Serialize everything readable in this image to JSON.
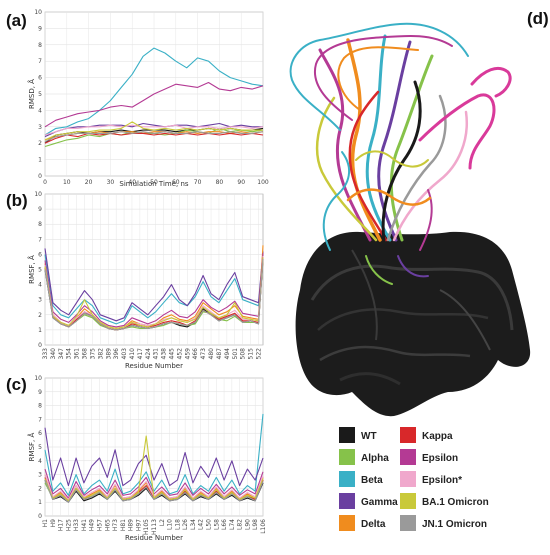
{
  "figure": {
    "panel_labels": [
      "(a)",
      "(b)",
      "(c)",
      "(d)"
    ]
  },
  "colors": {
    "WT": "#1a1a1a",
    "Alpha": "#86c24a",
    "Beta": "#3ab0c6",
    "Gamma": "#6a3fa0",
    "Delta": "#f08c1e",
    "Kappa": "#d8282a",
    "Epsilon": "#b43a94",
    "Epsilon*": "#f0a8cc",
    "BA.1 Omicron": "#c9c93a",
    "JN.1 Omicron": "#9a9a9a"
  },
  "legend": {
    "items": [
      "WT",
      "Alpha",
      "Beta",
      "Gamma",
      "Delta",
      "Kappa",
      "Epsilon",
      "Epsilon*",
      "BA.1 Omicron",
      "JN.1 Omicron"
    ]
  },
  "chart_data": [
    {
      "panel": "(a)",
      "type": "line",
      "xlabel": "Simulation Time, ns",
      "ylabel": "RMSD, Å",
      "xlim": [
        0,
        100
      ],
      "ylim": [
        0,
        10
      ],
      "xticks": [
        "0",
        "10",
        "20",
        "30",
        "40",
        "50",
        "60",
        "70",
        "80",
        "90",
        "100"
      ],
      "yticks": [
        "0",
        "1",
        "2",
        "3",
        "4",
        "5",
        "6",
        "7",
        "8",
        "9",
        "10"
      ],
      "grid": true,
      "x": [
        0,
        5,
        10,
        15,
        20,
        25,
        30,
        35,
        40,
        45,
        50,
        55,
        60,
        65,
        70,
        75,
        80,
        85,
        90,
        95,
        100
      ],
      "series": [
        {
          "name": "WT",
          "values": [
            2.0,
            2.5,
            2.6,
            2.7,
            2.6,
            2.7,
            2.7,
            2.8,
            2.7,
            2.8,
            2.8,
            2.8,
            2.7,
            2.8,
            2.8,
            2.9,
            2.8,
            2.9,
            2.8,
            2.8,
            2.9
          ]
        },
        {
          "name": "Alpha",
          "values": [
            1.8,
            2.0,
            2.2,
            2.3,
            2.5,
            2.4,
            2.6,
            2.5,
            2.7,
            2.6,
            2.6,
            2.5,
            2.6,
            2.8,
            2.7,
            2.6,
            2.9,
            2.7,
            2.8,
            2.7,
            2.8
          ]
        },
        {
          "name": "Beta",
          "values": [
            2.5,
            2.9,
            3.0,
            3.3,
            3.5,
            4.0,
            4.6,
            5.4,
            6.2,
            7.3,
            7.8,
            7.5,
            7.0,
            6.6,
            7.2,
            7.0,
            6.4,
            6.0,
            5.8,
            5.6,
            5.5
          ]
        },
        {
          "name": "Gamma",
          "values": [
            2.4,
            2.7,
            2.9,
            3.0,
            3.0,
            3.1,
            3.1,
            3.1,
            3.0,
            3.2,
            3.1,
            3.0,
            3.1,
            3.1,
            3.0,
            3.1,
            3.2,
            3.0,
            3.1,
            3.0,
            3.0
          ]
        },
        {
          "name": "Delta",
          "values": [
            2.2,
            2.4,
            2.5,
            2.6,
            2.6,
            2.7,
            2.6,
            2.7,
            2.7,
            2.6,
            2.7,
            2.7,
            2.6,
            2.7,
            2.6,
            2.7,
            2.7,
            2.6,
            2.7,
            2.6,
            2.7
          ]
        },
        {
          "name": "Kappa",
          "values": [
            2.0,
            2.3,
            2.5,
            2.4,
            2.6,
            2.5,
            2.6,
            2.5,
            2.6,
            2.6,
            2.5,
            2.6,
            2.5,
            2.6,
            2.5,
            2.6,
            2.5,
            2.6,
            2.5,
            2.6,
            2.5
          ]
        },
        {
          "name": "Epsilon",
          "values": [
            3.0,
            3.4,
            3.6,
            3.8,
            3.9,
            4.0,
            4.2,
            4.3,
            4.2,
            4.6,
            5.0,
            5.3,
            5.6,
            5.5,
            5.4,
            5.7,
            5.3,
            5.2,
            5.4,
            5.3,
            5.5
          ]
        },
        {
          "name": "Epsilon*",
          "values": [
            2.5,
            2.7,
            2.9,
            2.9,
            3.0,
            3.0,
            3.1,
            3.0,
            3.1,
            3.0,
            3.0,
            3.0,
            3.1,
            2.9,
            3.0,
            3.0,
            2.9,
            3.0,
            3.0,
            2.9,
            3.0
          ]
        },
        {
          "name": "BA.1 Omicron",
          "values": [
            2.2,
            2.5,
            2.6,
            2.7,
            2.7,
            2.8,
            2.8,
            2.9,
            3.3,
            2.9,
            2.8,
            2.9,
            2.8,
            2.9,
            2.8,
            2.9,
            2.8,
            2.9,
            2.8,
            2.8,
            2.8
          ]
        },
        {
          "name": "JN.1 Omicron",
          "values": [
            2.1,
            2.4,
            2.5,
            2.6,
            2.6,
            2.6,
            2.6,
            2.7,
            2.6,
            2.7,
            2.6,
            2.7,
            2.6,
            2.6,
            2.7,
            2.6,
            2.6,
            2.7,
            2.6,
            2.6,
            2.7
          ]
        }
      ]
    },
    {
      "panel": "(b)",
      "type": "line",
      "xlabel": "Residue Number",
      "ylabel": "RMSF, Å",
      "ylim": [
        0,
        10
      ],
      "yticks": [
        "0",
        "1",
        "2",
        "3",
        "4",
        "5",
        "6",
        "7",
        "8",
        "9",
        "10"
      ],
      "xticks": [
        "333",
        "340",
        "347",
        "354",
        "361",
        "368",
        "375",
        "382",
        "389",
        "396",
        "403",
        "410",
        "417",
        "424",
        "431",
        "438",
        "445",
        "452",
        "459",
        "466",
        "473",
        "480",
        "487",
        "494",
        "501",
        "508",
        "515",
        "522"
      ],
      "grid": true,
      "x": [
        333,
        340,
        347,
        354,
        361,
        368,
        375,
        382,
        389,
        396,
        403,
        410,
        417,
        424,
        431,
        438,
        445,
        452,
        459,
        466,
        473,
        480,
        487,
        494,
        501,
        508,
        515,
        522,
        526
      ],
      "series": [
        {
          "name": "WT",
          "values": [
            5.0,
            1.8,
            1.4,
            1.2,
            1.6,
            2.2,
            1.9,
            1.4,
            1.1,
            1.0,
            1.1,
            1.3,
            1.2,
            1.1,
            1.2,
            1.4,
            1.5,
            1.3,
            1.2,
            1.5,
            2.4,
            2.0,
            1.6,
            1.8,
            2.0,
            1.5,
            1.6,
            1.4,
            5.8
          ]
        },
        {
          "name": "Alpha",
          "values": [
            5.2,
            1.9,
            1.4,
            1.2,
            1.6,
            2.0,
            1.8,
            1.3,
            1.1,
            1.0,
            1.1,
            1.2,
            1.1,
            1.1,
            1.2,
            1.3,
            1.5,
            1.4,
            1.3,
            1.4,
            2.2,
            2.1,
            1.7,
            1.6,
            1.9,
            1.5,
            1.5,
            1.5,
            5.6
          ]
        },
        {
          "name": "Beta",
          "values": [
            6.0,
            2.6,
            2.0,
            1.8,
            2.4,
            3.0,
            2.6,
            1.8,
            1.6,
            1.4,
            1.6,
            2.6,
            2.2,
            1.8,
            2.2,
            2.8,
            3.4,
            2.8,
            2.6,
            3.2,
            4.2,
            3.2,
            2.8,
            3.6,
            4.4,
            3.0,
            2.8,
            2.6,
            6.0
          ]
        },
        {
          "name": "Gamma",
          "values": [
            6.4,
            2.8,
            2.3,
            2.0,
            2.8,
            3.6,
            3.0,
            2.0,
            1.8,
            1.6,
            1.8,
            2.8,
            2.4,
            2.0,
            2.6,
            3.2,
            4.0,
            3.0,
            2.6,
            3.4,
            4.6,
            3.4,
            3.0,
            4.0,
            4.8,
            3.2,
            3.0,
            2.8,
            6.2
          ]
        },
        {
          "name": "Delta",
          "values": [
            5.4,
            2.0,
            1.5,
            1.3,
            1.8,
            2.4,
            2.0,
            1.5,
            1.2,
            1.1,
            1.2,
            1.6,
            1.4,
            1.3,
            1.4,
            1.8,
            2.0,
            1.7,
            1.6,
            1.9,
            2.8,
            2.4,
            2.0,
            2.2,
            2.6,
            1.9,
            1.8,
            1.7,
            6.6
          ]
        },
        {
          "name": "Kappa",
          "values": [
            5.1,
            1.9,
            1.4,
            1.2,
            1.7,
            2.1,
            1.9,
            1.4,
            1.1,
            1.0,
            1.1,
            1.4,
            1.3,
            1.2,
            1.3,
            1.5,
            1.6,
            1.5,
            1.3,
            1.6,
            2.3,
            2.0,
            1.7,
            1.9,
            2.1,
            1.6,
            1.6,
            1.5,
            5.7
          ]
        },
        {
          "name": "Epsilon",
          "values": [
            5.6,
            2.2,
            1.7,
            1.5,
            2.0,
            2.6,
            2.2,
            1.6,
            1.3,
            1.2,
            1.3,
            1.8,
            1.6,
            1.4,
            1.6,
            2.0,
            2.3,
            1.9,
            1.8,
            2.2,
            3.0,
            2.5,
            2.2,
            2.5,
            2.9,
            2.1,
            2.0,
            1.9,
            6.1
          ]
        },
        {
          "name": "Epsilon*",
          "values": [
            5.3,
            2.0,
            1.5,
            1.3,
            1.8,
            2.2,
            2.0,
            1.5,
            1.2,
            1.1,
            1.2,
            1.5,
            1.4,
            1.3,
            1.4,
            1.7,
            1.8,
            1.6,
            1.5,
            1.8,
            2.6,
            2.2,
            1.8,
            2.0,
            2.3,
            1.7,
            1.7,
            1.6,
            5.9
          ]
        },
        {
          "name": "BA.1 Omicron",
          "values": [
            5.2,
            1.9,
            1.5,
            1.3,
            1.9,
            3.0,
            2.0,
            1.5,
            1.2,
            1.1,
            1.2,
            1.5,
            1.3,
            1.2,
            1.4,
            1.6,
            1.8,
            1.6,
            1.5,
            1.7,
            2.5,
            2.1,
            1.8,
            2.0,
            2.8,
            1.8,
            1.7,
            1.6,
            5.8
          ]
        },
        {
          "name": "JN.1 Omicron",
          "values": [
            5.0,
            1.8,
            1.4,
            1.2,
            1.6,
            2.1,
            1.9,
            1.4,
            1.1,
            1.0,
            1.1,
            1.3,
            1.2,
            1.1,
            1.2,
            1.4,
            1.5,
            1.4,
            1.3,
            1.5,
            2.3,
            2.0,
            1.6,
            1.8,
            2.0,
            1.5,
            1.6,
            1.4,
            5.7
          ]
        }
      ]
    },
    {
      "panel": "(c)",
      "type": "line",
      "xlabel": "Residue Number",
      "ylabel": "RMSF, Å",
      "ylim": [
        0,
        10
      ],
      "yticks": [
        "0",
        "1",
        "2",
        "3",
        "4",
        "5",
        "6",
        "7",
        "8",
        "9",
        "10"
      ],
      "xticks": [
        "H1",
        "H9",
        "H17",
        "H25",
        "H33",
        "H41",
        "H49",
        "H57",
        "H65",
        "H73",
        "H81",
        "H89",
        "H97",
        "H105",
        "H113",
        "L2",
        "L10",
        "L18",
        "L26",
        "L34",
        "L42",
        "L50",
        "L58",
        "L66",
        "L74",
        "L82",
        "L90",
        "L98",
        "L106"
      ],
      "grid": true,
      "x": [
        "H1",
        "H9",
        "H17",
        "H25",
        "H33",
        "H41",
        "H49",
        "H57",
        "H65",
        "H73",
        "H81",
        "H89",
        "H97",
        "H105",
        "H113",
        "L2",
        "L10",
        "L18",
        "L26",
        "L34",
        "L42",
        "L50",
        "L58",
        "L66",
        "L74",
        "L82",
        "L90",
        "L98",
        "L106"
      ],
      "series": [
        {
          "name": "WT",
          "values": [
            2.6,
            1.2,
            1.4,
            1.0,
            1.8,
            1.1,
            1.3,
            1.6,
            1.2,
            1.8,
            1.1,
            1.2,
            1.5,
            2.0,
            1.2,
            1.5,
            1.1,
            1.2,
            1.6,
            1.1,
            1.4,
            1.2,
            1.6,
            1.2,
            1.5,
            1.1,
            1.3,
            1.1,
            2.4
          ]
        },
        {
          "name": "Alpha",
          "values": [
            2.4,
            1.3,
            1.5,
            1.1,
            1.9,
            1.2,
            1.4,
            1.7,
            1.2,
            1.9,
            1.2,
            1.3,
            1.6,
            2.2,
            1.3,
            1.6,
            1.2,
            1.3,
            1.7,
            1.2,
            1.5,
            1.3,
            1.7,
            1.3,
            1.6,
            1.2,
            1.4,
            1.2,
            2.6
          ]
        },
        {
          "name": "Beta",
          "values": [
            4.8,
            1.8,
            2.4,
            1.5,
            3.0,
            1.6,
            2.2,
            2.6,
            1.8,
            3.4,
            1.6,
            1.8,
            2.4,
            3.2,
            1.8,
            2.6,
            1.6,
            1.8,
            3.0,
            1.6,
            2.2,
            1.8,
            2.8,
            1.8,
            2.6,
            1.6,
            2.2,
            1.8,
            7.4
          ]
        },
        {
          "name": "Gamma",
          "values": [
            6.4,
            2.6,
            4.2,
            2.2,
            4.2,
            2.4,
            3.6,
            4.2,
            2.8,
            4.8,
            2.2,
            2.6,
            3.8,
            4.4,
            2.6,
            3.8,
            2.2,
            2.6,
            4.6,
            2.4,
            3.6,
            2.8,
            4.2,
            2.6,
            4.0,
            2.2,
            3.4,
            2.6,
            4.2
          ]
        },
        {
          "name": "Delta",
          "values": [
            3.0,
            1.4,
            1.7,
            1.2,
            2.2,
            1.3,
            1.6,
            1.9,
            1.4,
            2.2,
            1.3,
            1.4,
            1.8,
            2.4,
            1.4,
            1.8,
            1.3,
            1.4,
            2.0,
            1.3,
            1.7,
            1.4,
            2.0,
            1.4,
            1.8,
            1.3,
            1.6,
            1.3,
            2.8
          ]
        },
        {
          "name": "Kappa",
          "values": [
            2.8,
            1.3,
            1.6,
            1.1,
            2.0,
            1.2,
            1.5,
            1.8,
            1.3,
            2.0,
            1.2,
            1.3,
            1.7,
            2.2,
            1.3,
            1.7,
            1.2,
            1.3,
            1.8,
            1.2,
            1.6,
            1.3,
            1.8,
            1.3,
            1.7,
            1.2,
            1.5,
            1.2,
            2.6
          ]
        },
        {
          "name": "Epsilon",
          "values": [
            3.4,
            1.6,
            2.0,
            1.3,
            2.5,
            1.5,
            1.9,
            2.2,
            1.6,
            2.6,
            1.5,
            1.6,
            2.1,
            2.8,
            1.6,
            2.1,
            1.5,
            1.6,
            2.4,
            1.5,
            2.0,
            1.6,
            2.3,
            1.6,
            2.1,
            1.5,
            1.9,
            1.6,
            3.2
          ]
        },
        {
          "name": "Epsilon*",
          "values": [
            3.0,
            1.4,
            1.8,
            1.2,
            2.2,
            1.4,
            1.7,
            2.0,
            1.4,
            2.3,
            1.3,
            1.4,
            1.9,
            2.5,
            1.4,
            1.9,
            1.3,
            1.4,
            2.1,
            1.3,
            1.8,
            1.4,
            2.1,
            1.4,
            1.9,
            1.3,
            1.7,
            1.4,
            2.9
          ]
        },
        {
          "name": "BA.1 Omicron",
          "values": [
            2.7,
            1.3,
            1.6,
            1.1,
            2.0,
            1.3,
            1.5,
            1.8,
            1.3,
            2.0,
            1.2,
            1.3,
            1.7,
            5.8,
            1.3,
            1.7,
            1.2,
            1.3,
            1.9,
            1.2,
            1.6,
            1.3,
            1.9,
            1.3,
            1.7,
            1.2,
            1.5,
            1.3,
            2.7
          ]
        },
        {
          "name": "JN.1 Omicron",
          "values": [
            2.6,
            1.2,
            1.5,
            1.0,
            1.9,
            1.2,
            1.4,
            1.7,
            1.2,
            1.9,
            1.1,
            1.2,
            1.6,
            2.1,
            1.2,
            1.6,
            1.1,
            1.2,
            1.7,
            1.1,
            1.5,
            1.2,
            1.7,
            1.2,
            1.6,
            1.1,
            1.4,
            1.1,
            2.5
          ]
        }
      ]
    }
  ]
}
